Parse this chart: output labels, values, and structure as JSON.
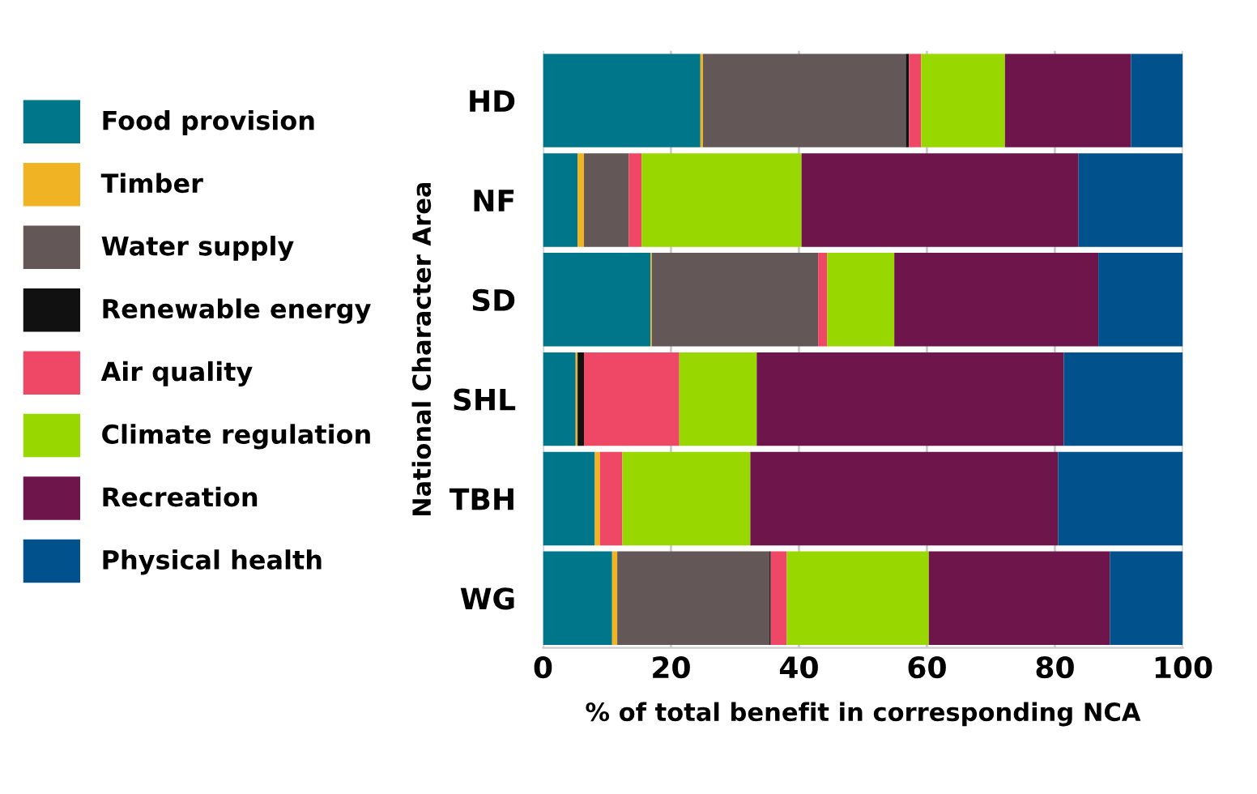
{
  "chart_data": {
    "type": "bar",
    "orientation": "horizontal",
    "stacked": true,
    "xlabel": "% of total benefit in corresponding NCA",
    "ylabel": "National Character Area",
    "categories": [
      "HD",
      "NF",
      "SD",
      "SHL",
      "TBH",
      "WG"
    ],
    "series": [
      {
        "name": "Food provision",
        "color": "#00768a",
        "values": [
          24.6,
          5.4,
          16.8,
          5.1,
          8.1,
          10.8
        ]
      },
      {
        "name": "Timber",
        "color": "#f0b323",
        "values": [
          0.4,
          1.0,
          0.2,
          0.3,
          0.8,
          0.8
        ]
      },
      {
        "name": "Water supply",
        "color": "#635857",
        "values": [
          31.7,
          7.0,
          26.0,
          0,
          0,
          23.8
        ]
      },
      {
        "name": "Renewable energy",
        "color": "#111111",
        "values": [
          0.5,
          0,
          0,
          1.0,
          0,
          0.2
        ]
      },
      {
        "name": "Air quality",
        "color": "#ee4866",
        "values": [
          1.9,
          2.0,
          1.4,
          14.9,
          3.5,
          2.5
        ]
      },
      {
        "name": "Climate regulation",
        "color": "#98d700",
        "values": [
          13.1,
          25.0,
          10.5,
          12.1,
          20.0,
          22.2
        ]
      },
      {
        "name": "Recreation",
        "color": "#6e164b",
        "values": [
          19.7,
          43.3,
          31.9,
          48.0,
          48.1,
          28.3
        ]
      },
      {
        "name": "Physical health",
        "color": "#00518c",
        "values": [
          8.1,
          16.3,
          13.2,
          18.6,
          19.5,
          11.4
        ]
      }
    ],
    "xlim": [
      0,
      100
    ],
    "xticks": [
      0,
      20,
      40,
      60,
      80,
      100
    ],
    "grid": "x",
    "legend": "left"
  }
}
